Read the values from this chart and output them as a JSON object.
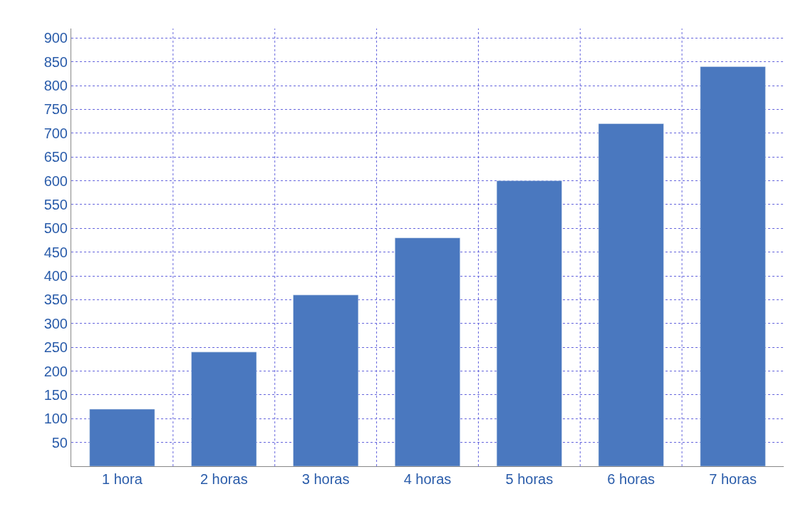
{
  "chart_data": {
    "type": "bar",
    "categories": [
      "1 hora",
      "2 horas",
      "3 horas",
      "4 horas",
      "5 horas",
      "6 horas",
      "7 horas"
    ],
    "values": [
      120,
      240,
      360,
      480,
      600,
      720,
      840
    ],
    "color": "#4a78bf",
    "ylim": [
      0,
      920
    ],
    "yticks": [
      50,
      100,
      150,
      200,
      250,
      300,
      350,
      400,
      450,
      500,
      550,
      600,
      650,
      700,
      750,
      800,
      850,
      900
    ],
    "grid": true,
    "legend": false
  }
}
